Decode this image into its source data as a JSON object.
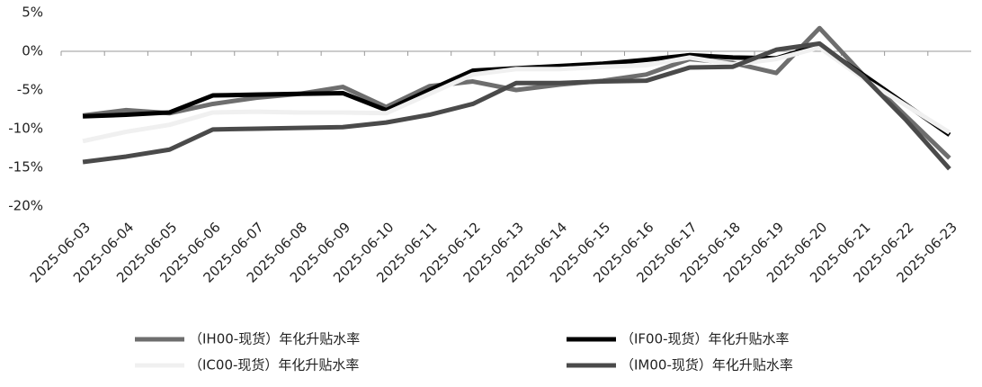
{
  "chart_data": {
    "type": "line",
    "categories": [
      "2025-06-03",
      "2025-06-04",
      "2025-06-05",
      "2025-06-06",
      "2025-06-07",
      "2025-06-08",
      "2025-06-09",
      "2025-06-10",
      "2025-06-11",
      "2025-06-12",
      "2025-06-13",
      "2025-06-14",
      "2025-06-15",
      "2025-06-16",
      "2025-06-17",
      "2025-06-18",
      "2025-06-19",
      "2025-06-20",
      "2025-06-21",
      "2025-06-22",
      "2025-06-23"
    ],
    "series": [
      {
        "name": "（IH00-现货）年化升贴水率",
        "color": "#6e6e6e",
        "values": [
          -8.3,
          -7.6,
          -8.0,
          -6.8,
          -6.0,
          -5.5,
          -4.6,
          -7.2,
          -4.5,
          -3.9,
          -5.0,
          -4.3,
          -3.8,
          -3.0,
          -1.0,
          -1.5,
          -2.8,
          3.0,
          -3.0,
          -8.4,
          -13.8
        ]
      },
      {
        "name": "（IF00-现货）年化升贴水率",
        "color": "#000000",
        "values": [
          -8.4,
          -8.2,
          -7.9,
          -5.7,
          -5.6,
          -5.5,
          -5.4,
          -7.6,
          -5.0,
          -2.5,
          -2.2,
          -1.9,
          -1.6,
          -1.1,
          -0.5,
          -0.8,
          -0.9,
          0.8,
          -3.0,
          -6.9,
          -10.8
        ]
      },
      {
        "name": "（IC00-现货）年化升贴水率",
        "color": "#f0f0f0",
        "values": [
          -11.6,
          -10.4,
          -9.5,
          -7.9,
          -7.8,
          -7.9,
          -7.9,
          -8.0,
          -5.5,
          -3.0,
          -2.3,
          -2.3,
          -2.0,
          -1.8,
          -0.8,
          -1.7,
          -1.0,
          0.5,
          -3.5,
          -7.0,
          -10.5
        ]
      },
      {
        "name": "（IM00-现货）年化升贴水率",
        "color": "#4a4a4a",
        "values": [
          -14.3,
          -13.6,
          -12.7,
          -10.1,
          -10.0,
          -9.9,
          -9.8,
          -9.2,
          -8.2,
          -6.8,
          -4.1,
          -4.1,
          -3.9,
          -3.8,
          -2.1,
          -2.0,
          0.2,
          1.0,
          -3.2,
          -8.9,
          -15.2
        ]
      }
    ],
    "ylim": [
      -20,
      5
    ],
    "yticks": [
      {
        "value": -20,
        "label": "-20%"
      },
      {
        "value": -15,
        "label": "-15%"
      },
      {
        "value": -10,
        "label": "-10%"
      },
      {
        "value": -5,
        "label": "-5%"
      },
      {
        "value": 0,
        "label": "0%"
      },
      {
        "value": 5,
        "label": "5%"
      }
    ]
  }
}
